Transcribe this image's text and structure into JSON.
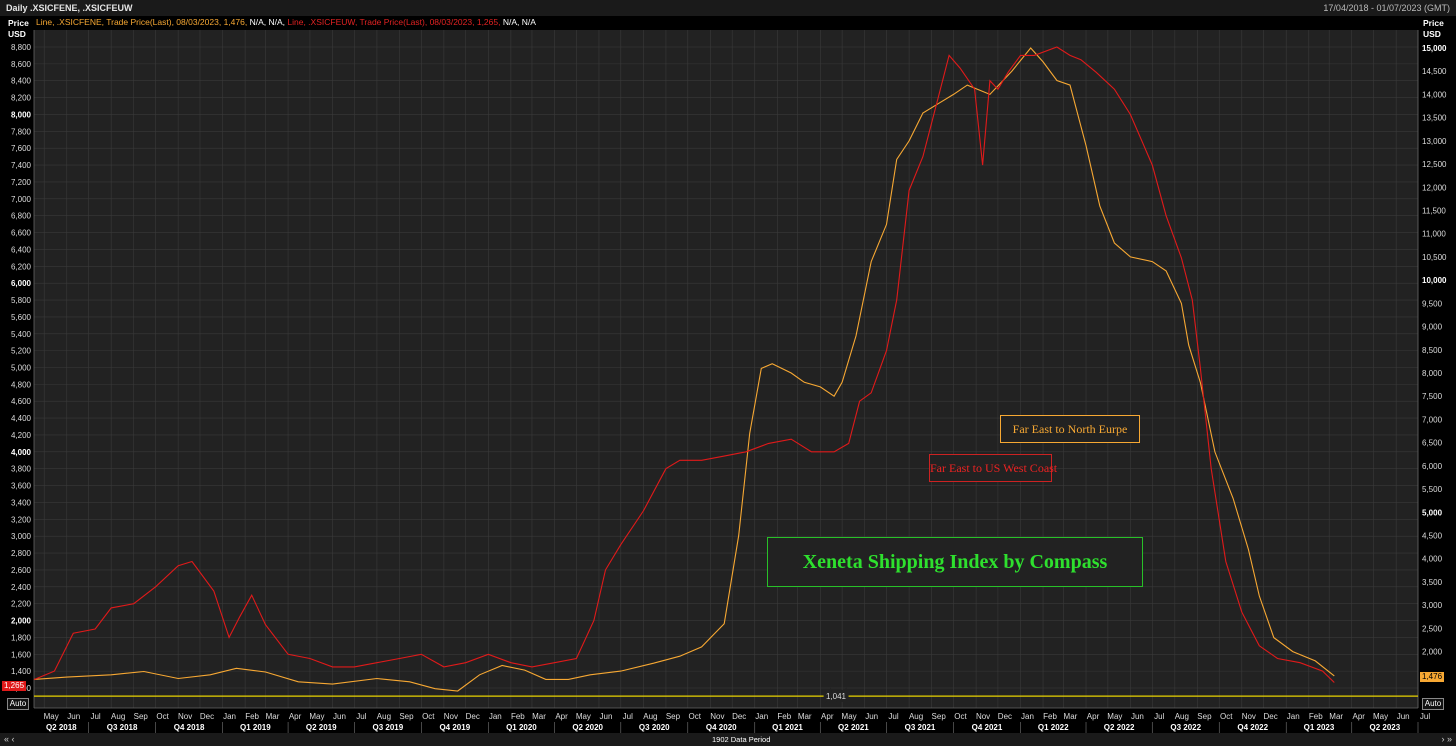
{
  "header": {
    "title": "Daily .XSICFENE, .XSICFEUW",
    "date_range": "17/04/2018 - 01/07/2023 (GMT)"
  },
  "legend": {
    "fene_prefix": "Line, .XSICFENE, Trade Price(Last), 08/03/2023, 1,476,",
    "fene_suffix": "N/A, N/A,",
    "feuw_prefix": "Line, .XSICFEUW, Trade Price(Last), 08/03/2023, 1,265,",
    "feuw_suffix": "N/A, N/A"
  },
  "axes": {
    "left_header": "Price\nUSD",
    "right_header": "Price\nUSD",
    "left_auto": "Auto",
    "right_auto": "Auto",
    "left_badge": "1,265",
    "right_badge": "1,476",
    "baseline_label": "1,041",
    "data_period": "1902 Data Period",
    "nav_left": "«  ‹",
    "nav_right": "›  »"
  },
  "annotations": {
    "north_europe": "Far East to North Eurpe",
    "us_west_coast": "Far East to US West Coast",
    "title": "Xeneta Shipping Index by Compass"
  },
  "colors": {
    "fene": "#f7a833",
    "feuw": "#e01a1a",
    "baseline": "#e8d200",
    "background": "#222222",
    "grid": "#3a3a3a"
  },
  "chart_data": {
    "type": "line",
    "left_axis": {
      "ylim": [
        1200,
        9000
      ],
      "ticks": [
        1200,
        1400,
        1600,
        1800,
        2000,
        2200,
        2400,
        2600,
        2800,
        3000,
        3200,
        3400,
        3600,
        3800,
        4000,
        4200,
        4400,
        4600,
        4800,
        5000,
        5200,
        5400,
        5600,
        5800,
        6000,
        6200,
        6400,
        6600,
        6800,
        7000,
        7200,
        7400,
        7600,
        7800,
        8000,
        8200,
        8400,
        8600,
        8800
      ],
      "bold": [
        2000,
        4000,
        6000,
        8000
      ]
    },
    "right_axis": {
      "ylim": [
        1000,
        15200
      ],
      "ticks": [
        1500,
        2000,
        2500,
        3000,
        3500,
        4000,
        4500,
        5000,
        5500,
        6000,
        6500,
        7000,
        7500,
        8000,
        8500,
        9000,
        9500,
        10000,
        10500,
        11000,
        11500,
        12000,
        12500,
        13000,
        13500,
        14000,
        14500,
        15000
      ],
      "bold": [
        5000,
        10000,
        15000
      ]
    },
    "x_months": [
      "May",
      "Jun",
      "Jul",
      "Aug",
      "Sep",
      "Oct",
      "Nov",
      "Dec",
      "Jan",
      "Feb",
      "Mar",
      "Apr",
      "May",
      "Jun",
      "Jul",
      "Aug",
      "Sep",
      "Oct",
      "Nov",
      "Dec",
      "Jan",
      "Feb",
      "Mar",
      "Apr",
      "May",
      "Jun",
      "Jul",
      "Aug",
      "Sep",
      "Oct",
      "Nov",
      "Dec",
      "Jan",
      "Feb",
      "Mar",
      "Apr",
      "May",
      "Jun",
      "Jul",
      "Aug",
      "Sep",
      "Oct",
      "Nov",
      "Dec",
      "Jan",
      "Feb",
      "Mar",
      "Apr",
      "May",
      "Jun",
      "Jul",
      "Aug",
      "Sep",
      "Oct",
      "Nov",
      "Dec",
      "Jan",
      "Feb",
      "Mar",
      "Apr",
      "May",
      "Jun",
      "Jul"
    ],
    "x_quarters": [
      "Q2 2018",
      "Q3 2018",
      "Q4 2018",
      "Q1 2019",
      "Q2 2019",
      "Q3 2019",
      "Q4 2019",
      "Q1 2020",
      "Q2 2020",
      "Q3 2020",
      "Q4 2020",
      "Q1 2021",
      "Q2 2021",
      "Q3 2021",
      "Q4 2021",
      "Q1 2022",
      "Q2 2022",
      "Q3 2022",
      "Q4 2022",
      "Q1 2023",
      "Q2 2023"
    ],
    "baseline_value": 1041,
    "series": [
      {
        "name": ".XSICFENE",
        "axis": "right",
        "points": [
          [
            "2018-04-17",
            1400
          ],
          [
            "2018-06-01",
            1450
          ],
          [
            "2018-08-01",
            1500
          ],
          [
            "2018-09-15",
            1570
          ],
          [
            "2018-11-01",
            1420
          ],
          [
            "2018-12-15",
            1500
          ],
          [
            "2019-01-20",
            1640
          ],
          [
            "2019-03-01",
            1560
          ],
          [
            "2019-04-15",
            1350
          ],
          [
            "2019-06-01",
            1300
          ],
          [
            "2019-08-01",
            1420
          ],
          [
            "2019-09-15",
            1350
          ],
          [
            "2019-10-20",
            1200
          ],
          [
            "2019-11-20",
            1150
          ],
          [
            "2019-12-20",
            1500
          ],
          [
            "2020-01-20",
            1700
          ],
          [
            "2020-02-20",
            1600
          ],
          [
            "2020-03-20",
            1400
          ],
          [
            "2020-04-20",
            1400
          ],
          [
            "2020-05-20",
            1500
          ],
          [
            "2020-07-01",
            1580
          ],
          [
            "2020-08-15",
            1750
          ],
          [
            "2020-09-20",
            1900
          ],
          [
            "2020-10-20",
            2100
          ],
          [
            "2020-11-20",
            2600
          ],
          [
            "2020-12-10",
            4500
          ],
          [
            "2020-12-25",
            6700
          ],
          [
            "2021-01-10",
            8100
          ],
          [
            "2021-01-25",
            8200
          ],
          [
            "2021-02-20",
            8000
          ],
          [
            "2021-03-10",
            7800
          ],
          [
            "2021-04-01",
            7700
          ],
          [
            "2021-04-20",
            7500
          ],
          [
            "2021-05-01",
            7800
          ],
          [
            "2021-05-20",
            8800
          ],
          [
            "2021-06-10",
            10400
          ],
          [
            "2021-07-01",
            11200
          ],
          [
            "2021-07-15",
            12600
          ],
          [
            "2021-08-01",
            13000
          ],
          [
            "2021-08-20",
            13600
          ],
          [
            "2021-09-10",
            13800
          ],
          [
            "2021-10-01",
            14000
          ],
          [
            "2021-10-20",
            14200
          ],
          [
            "2021-11-20",
            14000
          ],
          [
            "2021-12-20",
            14500
          ],
          [
            "2022-01-15",
            15000
          ],
          [
            "2022-02-01",
            14700
          ],
          [
            "2022-02-20",
            14300
          ],
          [
            "2022-03-10",
            14200
          ],
          [
            "2022-04-01",
            12900
          ],
          [
            "2022-04-20",
            11600
          ],
          [
            "2022-05-10",
            10800
          ],
          [
            "2022-06-01",
            10500
          ],
          [
            "2022-07-01",
            10400
          ],
          [
            "2022-07-20",
            10200
          ],
          [
            "2022-08-10",
            9500
          ],
          [
            "2022-08-20",
            8600
          ],
          [
            "2022-09-05",
            7800
          ],
          [
            "2022-09-25",
            6300
          ],
          [
            "2022-10-20",
            5300
          ],
          [
            "2022-11-10",
            4200
          ],
          [
            "2022-11-25",
            3200
          ],
          [
            "2022-12-15",
            2300
          ],
          [
            "2023-01-10",
            2000
          ],
          [
            "2023-02-10",
            1800
          ],
          [
            "2023-03-08",
            1476
          ]
        ]
      },
      {
        "name": ".XSICFEUW",
        "axis": "left",
        "points": [
          [
            "2018-04-17",
            1300
          ],
          [
            "2018-05-15",
            1400
          ],
          [
            "2018-06-10",
            1850
          ],
          [
            "2018-07-10",
            1900
          ],
          [
            "2018-08-01",
            2150
          ],
          [
            "2018-09-01",
            2200
          ],
          [
            "2018-10-01",
            2400
          ],
          [
            "2018-11-01",
            2650
          ],
          [
            "2018-11-20",
            2700
          ],
          [
            "2018-12-20",
            2350
          ],
          [
            "2019-01-10",
            1800
          ],
          [
            "2019-01-25",
            2050
          ],
          [
            "2019-02-10",
            2300
          ],
          [
            "2019-03-01",
            1950
          ],
          [
            "2019-04-01",
            1600
          ],
          [
            "2019-05-01",
            1550
          ],
          [
            "2019-06-01",
            1450
          ],
          [
            "2019-07-01",
            1450
          ],
          [
            "2019-08-01",
            1500
          ],
          [
            "2019-09-01",
            1550
          ],
          [
            "2019-10-01",
            1600
          ],
          [
            "2019-11-01",
            1450
          ],
          [
            "2019-12-01",
            1500
          ],
          [
            "2020-01-01",
            1600
          ],
          [
            "2020-02-01",
            1500
          ],
          [
            "2020-03-01",
            1450
          ],
          [
            "2020-04-01",
            1500
          ],
          [
            "2020-05-01",
            1550
          ],
          [
            "2020-05-25",
            2000
          ],
          [
            "2020-06-10",
            2600
          ],
          [
            "2020-07-01",
            2900
          ],
          [
            "2020-08-01",
            3300
          ],
          [
            "2020-09-01",
            3800
          ],
          [
            "2020-09-20",
            3900
          ],
          [
            "2020-10-20",
            3900
          ],
          [
            "2020-11-20",
            3950
          ],
          [
            "2020-12-20",
            4000
          ],
          [
            "2021-01-20",
            4100
          ],
          [
            "2021-02-20",
            4150
          ],
          [
            "2021-03-20",
            4000
          ],
          [
            "2021-04-20",
            4000
          ],
          [
            "2021-05-10",
            4100
          ],
          [
            "2021-05-25",
            4600
          ],
          [
            "2021-06-10",
            4700
          ],
          [
            "2021-07-01",
            5200
          ],
          [
            "2021-07-15",
            5800
          ],
          [
            "2021-08-01",
            7100
          ],
          [
            "2021-08-20",
            7500
          ],
          [
            "2021-09-10",
            8200
          ],
          [
            "2021-09-25",
            8700
          ],
          [
            "2021-10-10",
            8550
          ],
          [
            "2021-10-30",
            8300
          ],
          [
            "2021-11-10",
            7400
          ],
          [
            "2021-11-20",
            8400
          ],
          [
            "2021-12-01",
            8300
          ],
          [
            "2021-12-15",
            8500
          ],
          [
            "2022-01-01",
            8700
          ],
          [
            "2022-01-20",
            8700
          ],
          [
            "2022-02-20",
            8800
          ],
          [
            "2022-03-10",
            8700
          ],
          [
            "2022-03-25",
            8650
          ],
          [
            "2022-04-15",
            8500
          ],
          [
            "2022-05-10",
            8300
          ],
          [
            "2022-06-01",
            8000
          ],
          [
            "2022-07-01",
            7400
          ],
          [
            "2022-07-20",
            6800
          ],
          [
            "2022-08-10",
            6300
          ],
          [
            "2022-08-25",
            5800
          ],
          [
            "2022-09-05",
            5000
          ],
          [
            "2022-09-20",
            3800
          ],
          [
            "2022-10-10",
            2700
          ],
          [
            "2022-11-01",
            2100
          ],
          [
            "2022-11-25",
            1700
          ],
          [
            "2022-12-20",
            1550
          ],
          [
            "2023-01-20",
            1500
          ],
          [
            "2023-02-20",
            1400
          ],
          [
            "2023-03-08",
            1265
          ]
        ]
      }
    ]
  }
}
